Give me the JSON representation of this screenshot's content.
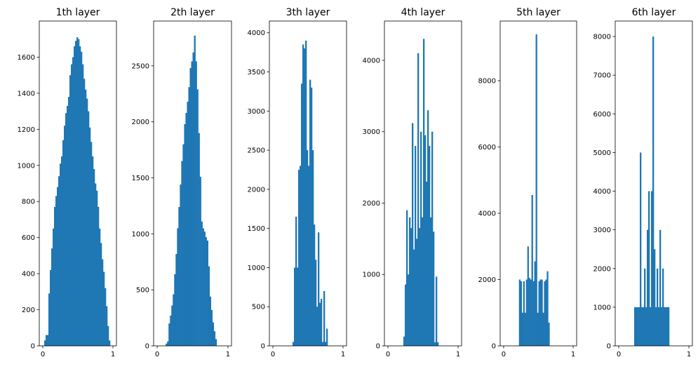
{
  "chart_data": [
    {
      "type": "histogram",
      "title": "1th layer",
      "xlim": [
        -0.05,
        1.05
      ],
      "ylim": [
        0,
        1800
      ],
      "xticks": [
        "0",
        "1"
      ],
      "yticks": [
        0,
        200,
        400,
        600,
        800,
        1000,
        1200,
        1400,
        1600
      ],
      "bin_width": 0.02,
      "bins": [
        {
          "x0": 0.02,
          "v": 30
        },
        {
          "x0": 0.04,
          "v": 60
        },
        {
          "x0": 0.06,
          "v": 60
        },
        {
          "x0": 0.08,
          "v": 290
        },
        {
          "x0": 0.1,
          "v": 420
        },
        {
          "x0": 0.12,
          "v": 540
        },
        {
          "x0": 0.14,
          "v": 650
        },
        {
          "x0": 0.16,
          "v": 770
        },
        {
          "x0": 0.18,
          "v": 830
        },
        {
          "x0": 0.2,
          "v": 880
        },
        {
          "x0": 0.22,
          "v": 940
        },
        {
          "x0": 0.24,
          "v": 1010
        },
        {
          "x0": 0.26,
          "v": 1050
        },
        {
          "x0": 0.28,
          "v": 1140
        },
        {
          "x0": 0.3,
          "v": 1220
        },
        {
          "x0": 0.32,
          "v": 1290
        },
        {
          "x0": 0.34,
          "v": 1330
        },
        {
          "x0": 0.36,
          "v": 1380
        },
        {
          "x0": 0.38,
          "v": 1500
        },
        {
          "x0": 0.4,
          "v": 1560
        },
        {
          "x0": 0.42,
          "v": 1600
        },
        {
          "x0": 0.44,
          "v": 1660
        },
        {
          "x0": 0.46,
          "v": 1690
        },
        {
          "x0": 0.48,
          "v": 1710
        },
        {
          "x0": 0.5,
          "v": 1700
        },
        {
          "x0": 0.52,
          "v": 1660
        },
        {
          "x0": 0.54,
          "v": 1630
        },
        {
          "x0": 0.56,
          "v": 1560
        },
        {
          "x0": 0.58,
          "v": 1480
        },
        {
          "x0": 0.6,
          "v": 1420
        },
        {
          "x0": 0.62,
          "v": 1370
        },
        {
          "x0": 0.64,
          "v": 1300
        },
        {
          "x0": 0.66,
          "v": 1210
        },
        {
          "x0": 0.68,
          "v": 1130
        },
        {
          "x0": 0.7,
          "v": 1050
        },
        {
          "x0": 0.72,
          "v": 980
        },
        {
          "x0": 0.74,
          "v": 900
        },
        {
          "x0": 0.76,
          "v": 860
        },
        {
          "x0": 0.78,
          "v": 770
        },
        {
          "x0": 0.8,
          "v": 650
        },
        {
          "x0": 0.82,
          "v": 570
        },
        {
          "x0": 0.84,
          "v": 480
        },
        {
          "x0": 0.86,
          "v": 410
        },
        {
          "x0": 0.88,
          "v": 320
        },
        {
          "x0": 0.9,
          "v": 220
        },
        {
          "x0": 0.92,
          "v": 110
        },
        {
          "x0": 0.94,
          "v": 30
        }
      ]
    },
    {
      "type": "histogram",
      "title": "2th layer",
      "xlim": [
        -0.05,
        1.05
      ],
      "ylim": [
        0,
        2900
      ],
      "xticks": [
        "0",
        "1"
      ],
      "yticks": [
        0,
        500,
        1000,
        1500,
        2000,
        2500
      ],
      "bin_width": 0.02,
      "bins": [
        {
          "x0": 0.12,
          "v": 20
        },
        {
          "x0": 0.14,
          "v": 40
        },
        {
          "x0": 0.16,
          "v": 200
        },
        {
          "x0": 0.18,
          "v": 270
        },
        {
          "x0": 0.2,
          "v": 360
        },
        {
          "x0": 0.22,
          "v": 460
        },
        {
          "x0": 0.24,
          "v": 640
        },
        {
          "x0": 0.26,
          "v": 820
        },
        {
          "x0": 0.28,
          "v": 1050
        },
        {
          "x0": 0.3,
          "v": 1240
        },
        {
          "x0": 0.32,
          "v": 1440
        },
        {
          "x0": 0.34,
          "v": 1650
        },
        {
          "x0": 0.36,
          "v": 1800
        },
        {
          "x0": 0.38,
          "v": 1980
        },
        {
          "x0": 0.4,
          "v": 2080
        },
        {
          "x0": 0.42,
          "v": 2180
        },
        {
          "x0": 0.44,
          "v": 2310
        },
        {
          "x0": 0.46,
          "v": 2480
        },
        {
          "x0": 0.48,
          "v": 2540
        },
        {
          "x0": 0.5,
          "v": 2620
        },
        {
          "x0": 0.52,
          "v": 2770
        },
        {
          "x0": 0.54,
          "v": 2540
        },
        {
          "x0": 0.56,
          "v": 2290
        },
        {
          "x0": 0.58,
          "v": 1900
        },
        {
          "x0": 0.6,
          "v": 1510
        },
        {
          "x0": 0.62,
          "v": 1110
        },
        {
          "x0": 0.64,
          "v": 1050
        },
        {
          "x0": 0.66,
          "v": 1020
        },
        {
          "x0": 0.68,
          "v": 970
        },
        {
          "x0": 0.7,
          "v": 940
        },
        {
          "x0": 0.72,
          "v": 710
        },
        {
          "x0": 0.74,
          "v": 440
        },
        {
          "x0": 0.76,
          "v": 320
        },
        {
          "x0": 0.78,
          "v": 210
        },
        {
          "x0": 0.8,
          "v": 130
        },
        {
          "x0": 0.82,
          "v": 60
        }
      ]
    },
    {
      "type": "histogram",
      "title": "3th layer",
      "xlim": [
        -0.05,
        1.05
      ],
      "ylim": [
        0,
        4150
      ],
      "xticks": [
        "0",
        "1"
      ],
      "yticks": [
        0,
        500,
        1000,
        1500,
        2000,
        2500,
        3000,
        3500,
        4000
      ],
      "bin_width": 0.02,
      "bins": [
        {
          "x0": 0.28,
          "v": 50
        },
        {
          "x0": 0.3,
          "v": 1000
        },
        {
          "x0": 0.32,
          "v": 1650
        },
        {
          "x0": 0.34,
          "v": 1000
        },
        {
          "x0": 0.36,
          "v": 2250
        },
        {
          "x0": 0.38,
          "v": 2300
        },
        {
          "x0": 0.4,
          "v": 3350
        },
        {
          "x0": 0.42,
          "v": 3850
        },
        {
          "x0": 0.44,
          "v": 3800
        },
        {
          "x0": 0.46,
          "v": 3900
        },
        {
          "x0": 0.48,
          "v": 2500
        },
        {
          "x0": 0.5,
          "v": 2300
        },
        {
          "x0": 0.52,
          "v": 3400
        },
        {
          "x0": 0.54,
          "v": 3300
        },
        {
          "x0": 0.56,
          "v": 2500
        },
        {
          "x0": 0.58,
          "v": 1550
        },
        {
          "x0": 0.6,
          "v": 1100
        },
        {
          "x0": 0.62,
          "v": 500
        },
        {
          "x0": 0.64,
          "v": 1450
        },
        {
          "x0": 0.66,
          "v": 550
        },
        {
          "x0": 0.68,
          "v": 600
        },
        {
          "x0": 0.7,
          "v": 50
        },
        {
          "x0": 0.72,
          "v": 700
        },
        {
          "x0": 0.74,
          "v": 50
        },
        {
          "x0": 0.76,
          "v": 220
        }
      ]
    },
    {
      "type": "histogram",
      "title": "4th layer",
      "xlim": [
        -0.05,
        1.05
      ],
      "ylim": [
        0,
        4550
      ],
      "xticks": [
        "0",
        "1"
      ],
      "yticks": [
        0,
        1000,
        2000,
        3000,
        4000
      ],
      "bin_width": 0.02,
      "bins": [
        {
          "x0": 0.22,
          "v": 130
        },
        {
          "x0": 0.24,
          "v": 860
        },
        {
          "x0": 0.26,
          "v": 1900
        },
        {
          "x0": 0.28,
          "v": 1000
        },
        {
          "x0": 0.3,
          "v": 1800
        },
        {
          "x0": 0.32,
          "v": 1650
        },
        {
          "x0": 0.34,
          "v": 3120
        },
        {
          "x0": 0.36,
          "v": 1350
        },
        {
          "x0": 0.38,
          "v": 2800
        },
        {
          "x0": 0.4,
          "v": 1500
        },
        {
          "x0": 0.42,
          "v": 4100
        },
        {
          "x0": 0.44,
          "v": 1650
        },
        {
          "x0": 0.46,
          "v": 3000
        },
        {
          "x0": 0.48,
          "v": 1800
        },
        {
          "x0": 0.5,
          "v": 4300
        },
        {
          "x0": 0.52,
          "v": 2950
        },
        {
          "x0": 0.54,
          "v": 2300
        },
        {
          "x0": 0.56,
          "v": 3300
        },
        {
          "x0": 0.58,
          "v": 2800
        },
        {
          "x0": 0.6,
          "v": 1800
        },
        {
          "x0": 0.62,
          "v": 3000
        },
        {
          "x0": 0.64,
          "v": 1600
        },
        {
          "x0": 0.66,
          "v": 50
        },
        {
          "x0": 0.68,
          "v": 970
        },
        {
          "x0": 0.7,
          "v": 50
        }
      ]
    },
    {
      "type": "histogram",
      "title": "5th layer",
      "xlim": [
        -0.05,
        1.05
      ],
      "ylim": [
        0,
        9800
      ],
      "xticks": [
        "0",
        "1"
      ],
      "yticks": [
        0,
        2000,
        4000,
        6000,
        8000
      ],
      "bin_width": 0.02,
      "bins": [
        {
          "x0": 0.22,
          "v": 2000
        },
        {
          "x0": 0.24,
          "v": 1950
        },
        {
          "x0": 0.26,
          "v": 1000
        },
        {
          "x0": 0.28,
          "v": 1950
        },
        {
          "x0": 0.3,
          "v": 1000
        },
        {
          "x0": 0.32,
          "v": 2000
        },
        {
          "x0": 0.34,
          "v": 3000
        },
        {
          "x0": 0.36,
          "v": 2050
        },
        {
          "x0": 0.38,
          "v": 2000
        },
        {
          "x0": 0.4,
          "v": 4550
        },
        {
          "x0": 0.42,
          "v": 1950
        },
        {
          "x0": 0.44,
          "v": 2550
        },
        {
          "x0": 0.46,
          "v": 9400
        },
        {
          "x0": 0.48,
          "v": 1000
        },
        {
          "x0": 0.5,
          "v": 1950
        },
        {
          "x0": 0.52,
          "v": 2000
        },
        {
          "x0": 0.54,
          "v": 2000
        },
        {
          "x0": 0.56,
          "v": 1000
        },
        {
          "x0": 0.58,
          "v": 1950
        },
        {
          "x0": 0.6,
          "v": 2000
        },
        {
          "x0": 0.62,
          "v": 2250
        },
        {
          "x0": 0.64,
          "v": 700
        }
      ]
    },
    {
      "type": "histogram",
      "title": "6th layer",
      "xlim": [
        -0.05,
        1.05
      ],
      "ylim": [
        0,
        8400
      ],
      "xticks": [
        "0",
        "1"
      ],
      "yticks": [
        0,
        1000,
        2000,
        3000,
        4000,
        5000,
        6000,
        7000,
        8000
      ],
      "bin_width": 0.02,
      "bins": [
        {
          "x0": 0.22,
          "v": 1000
        },
        {
          "x0": 0.24,
          "v": 1000
        },
        {
          "x0": 0.26,
          "v": 1000
        },
        {
          "x0": 0.28,
          "v": 1000
        },
        {
          "x0": 0.3,
          "v": 5000
        },
        {
          "x0": 0.32,
          "v": 1000
        },
        {
          "x0": 0.34,
          "v": 1000
        },
        {
          "x0": 0.36,
          "v": 2000
        },
        {
          "x0": 0.38,
          "v": 1000
        },
        {
          "x0": 0.4,
          "v": 3000
        },
        {
          "x0": 0.42,
          "v": 4000
        },
        {
          "x0": 0.44,
          "v": 1000
        },
        {
          "x0": 0.46,
          "v": 4000
        },
        {
          "x0": 0.48,
          "v": 8000
        },
        {
          "x0": 0.5,
          "v": 2500
        },
        {
          "x0": 0.52,
          "v": 1000
        },
        {
          "x0": 0.54,
          "v": 2000
        },
        {
          "x0": 0.56,
          "v": 1000
        },
        {
          "x0": 0.58,
          "v": 3000
        },
        {
          "x0": 0.6,
          "v": 1000
        },
        {
          "x0": 0.62,
          "v": 2000
        },
        {
          "x0": 0.64,
          "v": 1000
        },
        {
          "x0": 0.66,
          "v": 1000
        },
        {
          "x0": 0.68,
          "v": 1000
        },
        {
          "x0": 0.7,
          "v": 1000
        }
      ]
    }
  ],
  "style": {
    "bar_color": "#1f77b4",
    "axis_color": "#000000",
    "background": "#ffffff"
  }
}
